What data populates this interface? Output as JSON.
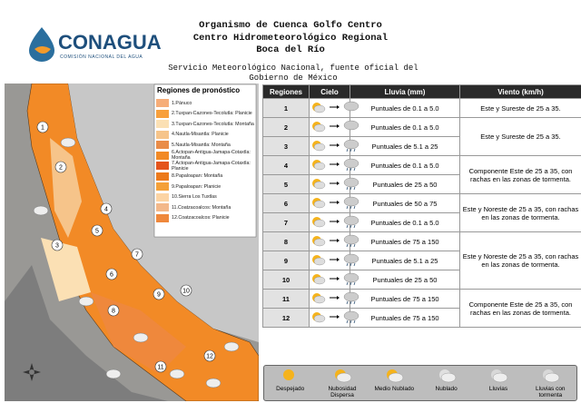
{
  "header": {
    "logo": "CONAGUA",
    "logo_subtitle": "COMISIÓN NACIONAL DEL AGUA",
    "lines": [
      "Organismo de Cuenca Golfo Centro",
      "Centro Hidrometeorológico Regional",
      "Boca del Río"
    ],
    "source": "Servicio Meteorológico Nacional, fuente oficial del Gobierno de México"
  },
  "map": {
    "legend_title": "Regiones de pronóstico",
    "regions": [
      {
        "label": "1.Pánuco",
        "color": "#f6ad78"
      },
      {
        "label": "2.Tuxpan-Cazones-Tecolutla: Planicie",
        "color": "#f8a03c"
      },
      {
        "label": "3.Tuxpan-Cazones-Tecolutla: Montaña",
        "color": "#fbe0b4"
      },
      {
        "label": "4.Nautla-Misantla: Planicie",
        "color": "#f6c48a"
      },
      {
        "label": "5.Nautla-Misantla: Montaña",
        "color": "#e98c48"
      },
      {
        "label": "6.Actopan-Antigua-Jamapa-Cotaxtla: Montaña",
        "color": "#f28a26"
      },
      {
        "label": "7.Actopan-Antigua-Jamapa-Cotaxtla: Planicie",
        "color": "#e4541c"
      },
      {
        "label": "8.Papaloapan: Montaña",
        "color": "#ec7a1c"
      },
      {
        "label": "9.Papaloapan: Planicie",
        "color": "#f4a038"
      },
      {
        "label": "10.Sierra Los Tuxtlas",
        "color": "#fcd4a4"
      },
      {
        "label": "11.Coatzacoalcos: Montaña",
        "color": "#f3b88a"
      },
      {
        "label": "12.Coatzacoalcos: Planicie",
        "color": "#ef883c"
      }
    ],
    "markers": [
      "1",
      "2",
      "3",
      "4",
      "5",
      "6",
      "7",
      "8",
      "9",
      "10",
      "11",
      "12"
    ]
  },
  "table": {
    "headers": [
      "Regiones",
      "Cielo",
      "Lluvia (mm)",
      "Viento (km/h)"
    ],
    "rows": [
      [
        "1",
        "Puntuales de 0.1 a 5.0",
        "Este y Sureste de 25 a 35."
      ],
      [
        "2",
        "Puntuales de 0.1 a 5.0",
        "Este y Sureste de 25 a 35."
      ],
      [
        "3",
        "Puntuales de 5.1 a 25",
        null
      ],
      [
        "4",
        "Puntuales de 0.1 a 5.0",
        "Componente Este de 25 a 35, con rachas en las zonas de tormenta."
      ],
      [
        "5",
        "Puntuales de 25 a 50",
        null
      ],
      [
        "6",
        "Puntuales de 50 a 75",
        "Este y Noreste de 25 a 35, con rachas en las zonas de tormenta."
      ],
      [
        "7",
        "Puntuales de 0.1 a 5.0",
        null
      ],
      [
        "8",
        "Puntuales de 75 a 150",
        "Este y Noreste de 25 a 35, con rachas en las zonas de tormenta."
      ],
      [
        "9",
        "Puntuales de 5.1 a 25",
        null
      ],
      [
        "10",
        "Puntuales de 25 a 50",
        null
      ],
      [
        "11",
        "Puntuales de 75 a 150",
        "Componente Este de 25 a 35, con rachas en las zonas de tormenta."
      ],
      [
        "12",
        "Puntuales de 75 a 150",
        null
      ]
    ]
  },
  "sky_legend": [
    "Despejado",
    "Nubosidad Dispersa",
    "Medio Nublado",
    "Nublado",
    "Lluvias",
    "Lluvias con tormenta"
  ]
}
